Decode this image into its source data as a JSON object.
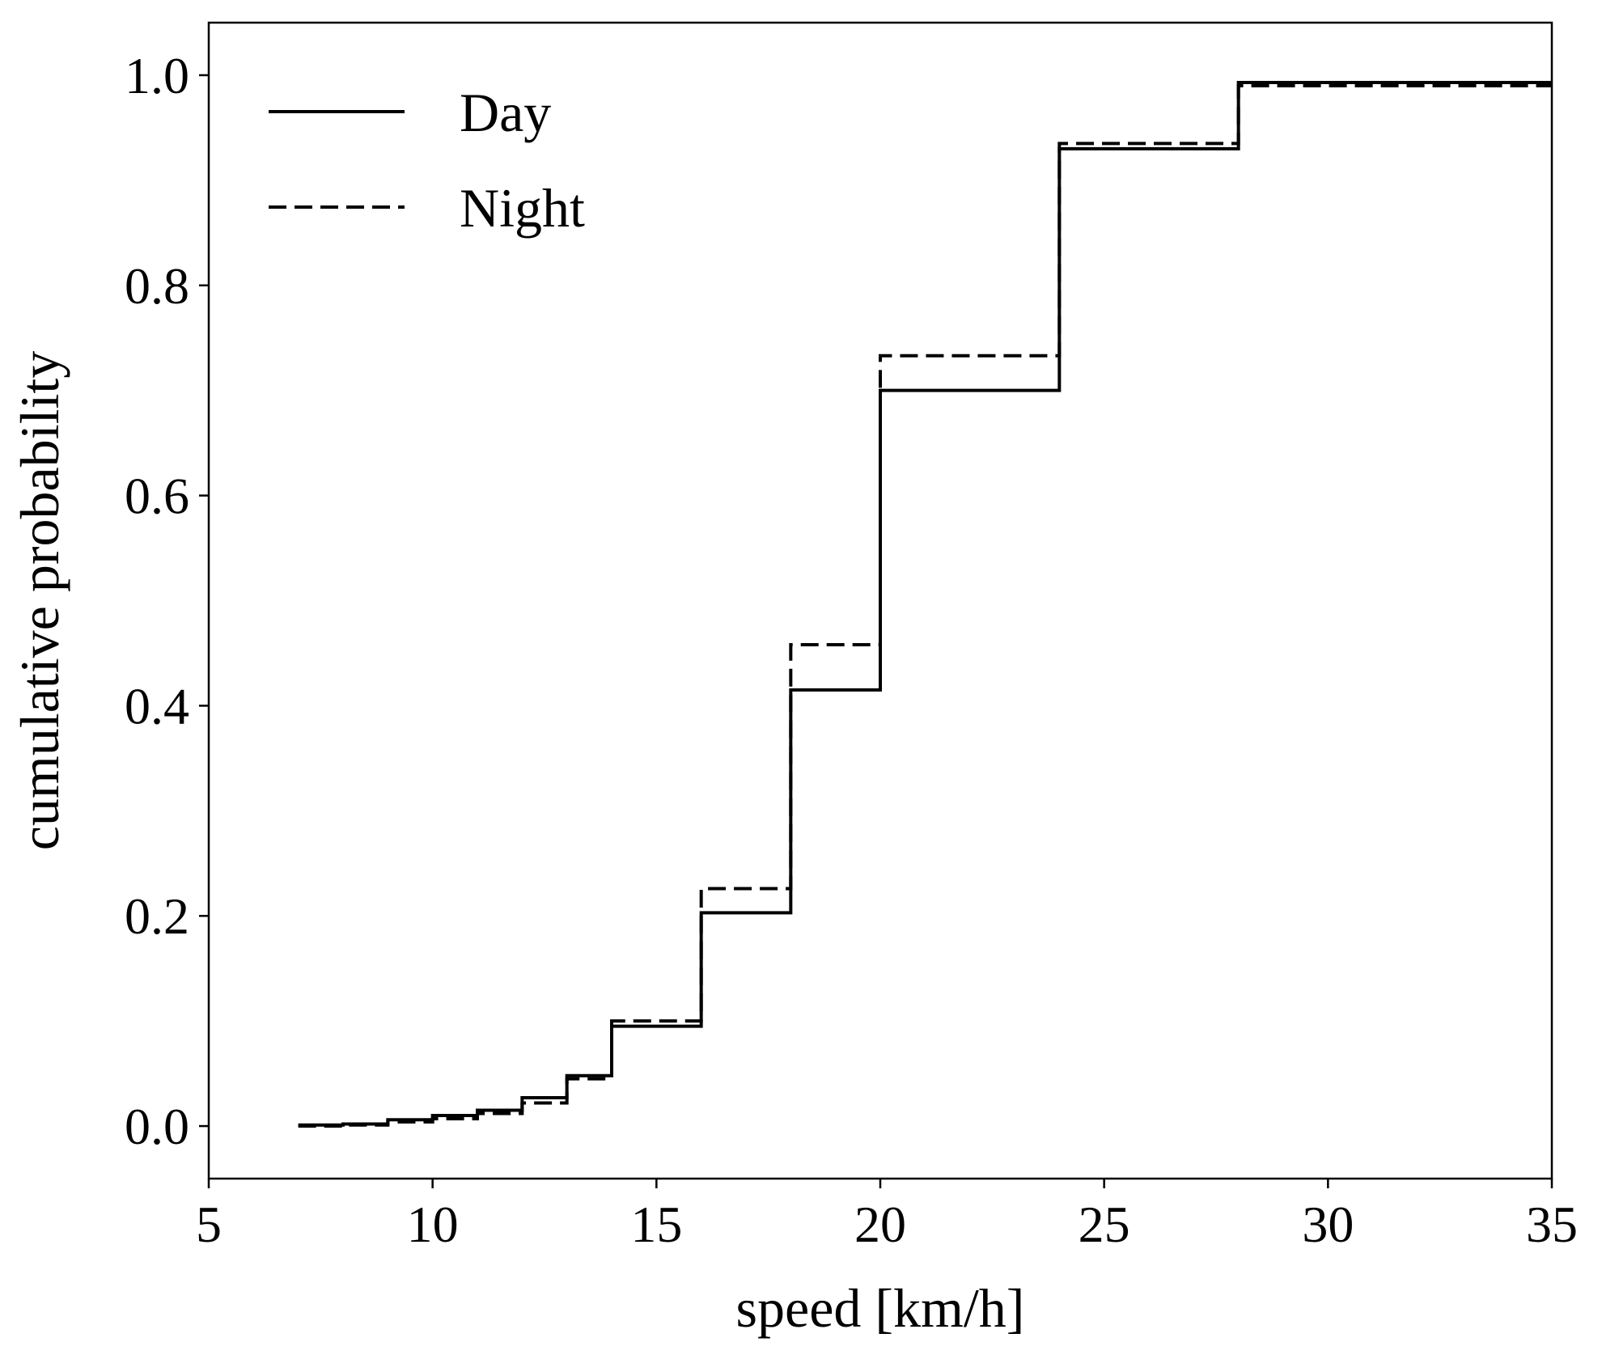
{
  "chart_data": {
    "type": "line",
    "step": "post",
    "xlabel": "speed [km/h]",
    "ylabel": "cumulative probability",
    "xlim": [
      5,
      35
    ],
    "ylim": [
      -0.05,
      1.05
    ],
    "xticks": [
      5,
      10,
      15,
      20,
      25,
      30,
      35
    ],
    "xtick_labels": [
      "5",
      "10",
      "15",
      "20",
      "25",
      "30",
      "35"
    ],
    "yticks": [
      0.0,
      0.2,
      0.4,
      0.6,
      0.8,
      1.0
    ],
    "ytick_labels": [
      "0.0",
      "0.2",
      "0.4",
      "0.6",
      "0.8",
      "1.0"
    ],
    "grid": false,
    "legend_position": "top-left",
    "series": [
      {
        "name": "Day",
        "style": "solid",
        "color": "#000000",
        "x": [
          7,
          8,
          9,
          10,
          11,
          12,
          13,
          14,
          16,
          18,
          20,
          24,
          28,
          35
        ],
        "y": [
          0.001,
          0.002,
          0.006,
          0.01,
          0.015,
          0.027,
          0.048,
          0.095,
          0.203,
          0.415,
          0.7,
          0.93,
          0.993,
          0.993
        ]
      },
      {
        "name": "Night",
        "style": "dashed",
        "color": "#000000",
        "x": [
          7,
          8,
          9,
          10,
          11,
          12,
          13,
          14,
          16,
          18,
          20,
          24,
          28,
          35
        ],
        "y": [
          0.0,
          0.001,
          0.004,
          0.007,
          0.012,
          0.022,
          0.045,
          0.1,
          0.226,
          0.458,
          0.733,
          0.935,
          0.99,
          0.99
        ]
      }
    ]
  }
}
